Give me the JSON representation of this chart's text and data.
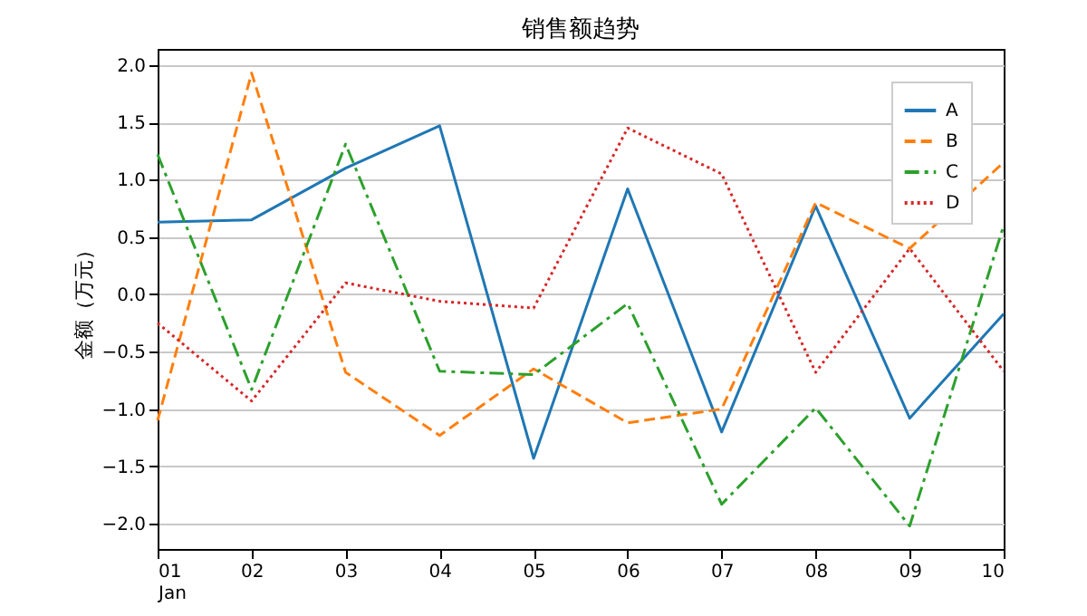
{
  "chart_data": {
    "type": "line",
    "title": "销售额趋势",
    "ylabel": "金额（万元）",
    "categories": [
      "01\nJan",
      "02",
      "03",
      "04",
      "05",
      "06",
      "07",
      "08",
      "09",
      "10"
    ],
    "series": [
      {
        "name": "A",
        "color": "#1f77b4",
        "line_style": "solid",
        "values": [
          0.63,
          0.65,
          1.1,
          1.47,
          -1.43,
          0.92,
          -1.2,
          0.77,
          -1.08,
          -0.17
        ]
      },
      {
        "name": "B",
        "color": "#ff7f0e",
        "line_style": "dashed",
        "values": [
          -1.1,
          1.93,
          -0.68,
          -1.23,
          -0.65,
          -1.12,
          -1.0,
          0.8,
          0.4,
          1.15
        ]
      },
      {
        "name": "C",
        "color": "#2ca02c",
        "line_style": "dashdot",
        "values": [
          1.22,
          -0.83,
          1.31,
          -0.67,
          -0.7,
          -0.08,
          -1.83,
          -0.99,
          -2.02,
          0.6
        ]
      },
      {
        "name": "D",
        "color": "#d62728",
        "line_style": "dotted",
        "values": [
          -0.25,
          -0.93,
          0.1,
          -0.06,
          -0.12,
          1.45,
          1.05,
          -0.68,
          0.4,
          -0.67
        ]
      }
    ],
    "ylim": [
      -2.22,
      2.14
    ],
    "yticks": [
      {
        "value": -2,
        "label": "−2.0"
      },
      -1.5,
      {
        "value": -1,
        "label": "−1.0"
      },
      -0.5,
      {
        "value": 0,
        "label": "0.0"
      },
      0.5,
      {
        "value": 1,
        "label": "1.0"
      },
      1.5,
      {
        "value": 2,
        "label": "2.0"
      }
    ],
    "grid": "y",
    "legend": "top right",
    "marker": "none"
  }
}
